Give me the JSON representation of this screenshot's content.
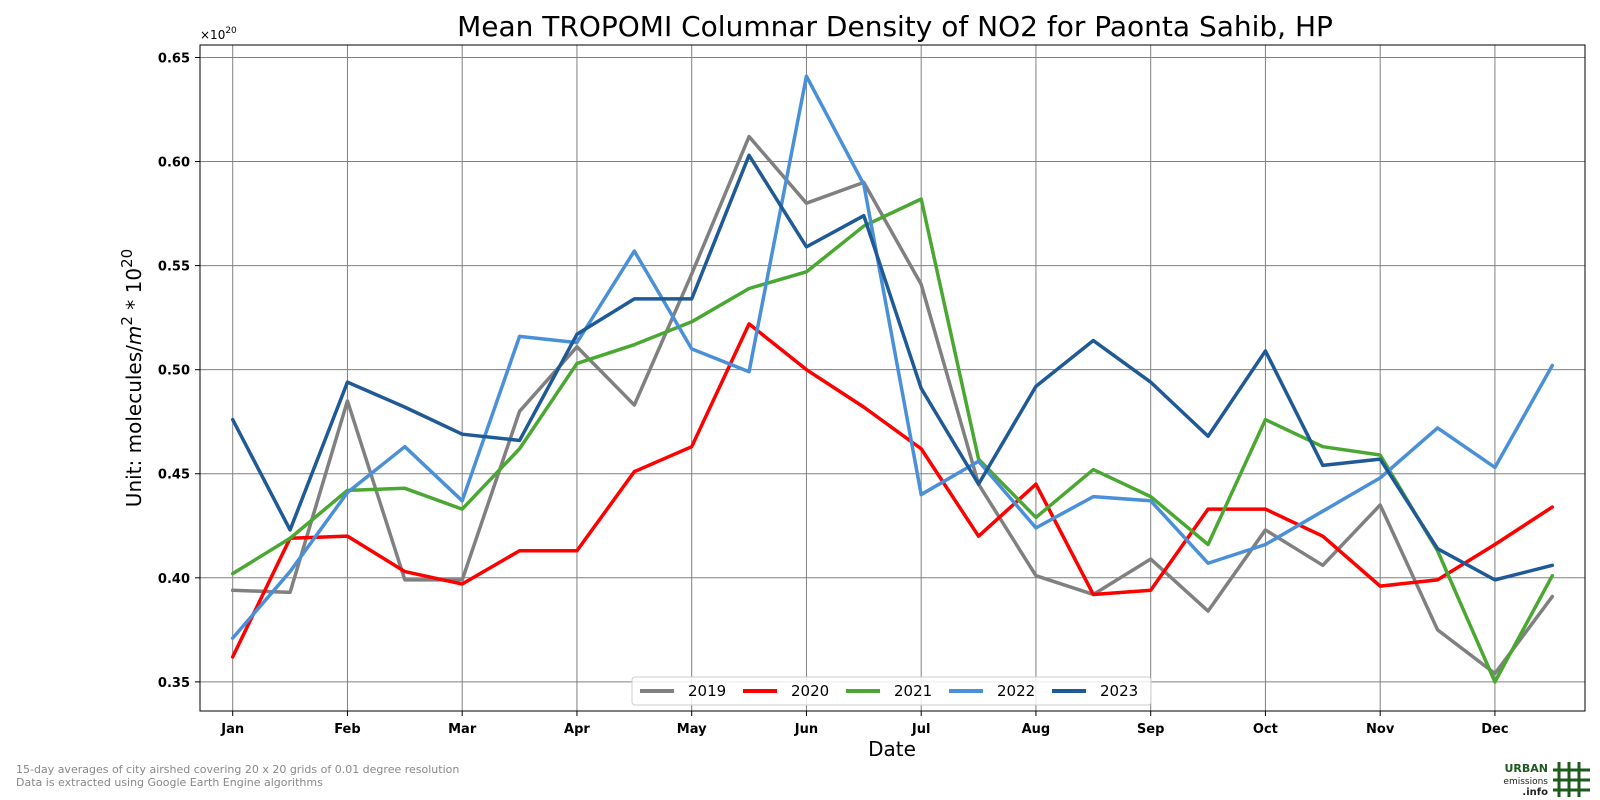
{
  "chart_data": {
    "type": "line",
    "title": "Mean TROPOMI Columnar Density of NO2 for Paonta Sahib, HP",
    "xlabel": "Date",
    "ylabel_prefix": "Unit: molecules/",
    "ylabel_unit_var": "m",
    "ylabel_unit_exp": "2",
    "ylabel_mid": " * 10",
    "ylabel_scale_exp": "20",
    "offset_base": "×10",
    "offset_exp": "20",
    "ylim": [
      0.336,
      0.656
    ],
    "yticks": [
      "0.35",
      "0.40",
      "0.45",
      "0.50",
      "0.55",
      "0.60",
      "0.65"
    ],
    "ytick_values": [
      0.35,
      0.4,
      0.45,
      0.5,
      0.55,
      0.6,
      0.65
    ],
    "xlim": [
      -0.57,
      23.57
    ],
    "month_labels": [
      "Jan",
      "Feb",
      "Mar",
      "Apr",
      "May",
      "Jun",
      "Jul",
      "Aug",
      "Sep",
      "Oct",
      "Nov",
      "Dec"
    ],
    "grid": true,
    "legend_position": "bottom-center",
    "x": [
      0,
      1,
      2,
      3,
      4,
      5,
      6,
      7,
      8,
      9,
      10,
      11,
      12,
      13,
      14,
      15,
      16,
      17,
      18,
      19,
      20,
      21,
      22,
      23
    ],
    "series": [
      {
        "name": "2019",
        "color": "#808080",
        "values": [
          0.394,
          0.393,
          0.485,
          0.399,
          0.399,
          0.48,
          0.511,
          0.483,
          0.546,
          0.612,
          0.58,
          0.59,
          0.541,
          0.445,
          0.401,
          0.392,
          0.409,
          0.384,
          0.423,
          0.406,
          0.435,
          0.375,
          0.354,
          0.391
        ]
      },
      {
        "name": "2020",
        "color": "#ff0000",
        "values": [
          0.362,
          0.419,
          0.42,
          0.403,
          0.397,
          0.413,
          0.413,
          0.451,
          0.463,
          0.522,
          0.5,
          0.482,
          0.462,
          0.42,
          0.445,
          0.392,
          0.394,
          0.433,
          0.433,
          0.42,
          0.396,
          0.399,
          0.416,
          0.434
        ]
      },
      {
        "name": "2021",
        "color": "#4aa832",
        "values": [
          0.402,
          0.419,
          0.442,
          0.443,
          0.433,
          0.462,
          0.503,
          0.512,
          0.523,
          0.539,
          0.547,
          0.569,
          0.582,
          0.457,
          0.429,
          0.452,
          0.439,
          0.416,
          0.476,
          0.463,
          0.459,
          0.413,
          0.35,
          0.401
        ]
      },
      {
        "name": "2022",
        "color": "#4a90d9",
        "values": [
          0.371,
          0.403,
          0.441,
          0.463,
          0.437,
          0.516,
          0.513,
          0.557,
          0.51,
          0.499,
          0.641,
          0.589,
          0.44,
          0.456,
          0.424,
          0.439,
          0.437,
          0.407,
          0.416,
          0.432,
          0.448,
          0.472,
          0.453,
          0.502
        ]
      },
      {
        "name": "2023",
        "color": "#1f5a96",
        "values": [
          0.476,
          0.423,
          0.494,
          0.482,
          0.469,
          0.466,
          0.517,
          0.534,
          0.534,
          0.603,
          0.559,
          0.574,
          0.491,
          0.445,
          0.492,
          0.514,
          0.494,
          0.468,
          0.509,
          0.454,
          0.457,
          0.414,
          0.399,
          0.406
        ]
      }
    ]
  },
  "footer": {
    "note_line1": "15-day averages of city airshed covering 20 x 20 grids of 0.01 degree resolution",
    "note_line2": "Data is extracted using Google Earth Engine algorithms",
    "logo_line1": "URBAN",
    "logo_line2": "emissions",
    "logo_line3": ".info",
    "logo_color": "#1e5a1e"
  }
}
